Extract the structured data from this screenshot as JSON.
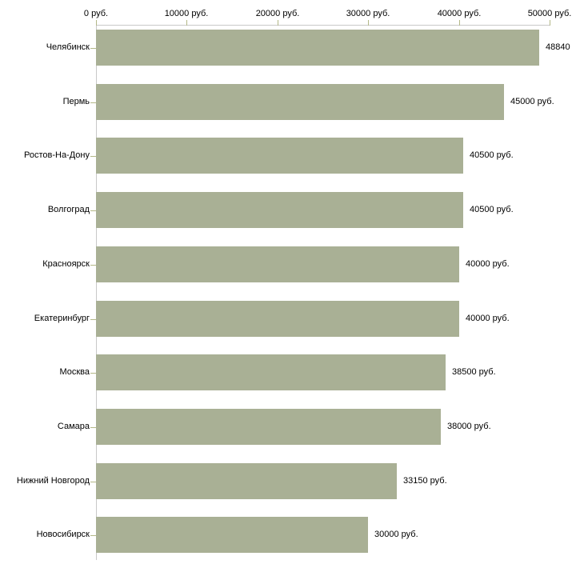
{
  "chart_data": {
    "type": "bar",
    "orientation": "horizontal",
    "title": "",
    "xlabel": "",
    "ylabel": "",
    "categories": [
      "Челябинск",
      "Пермь",
      "Ростов-На-Дону",
      "Волгоград",
      "Красноярск",
      "Екатеринбург",
      "Москва",
      "Самара",
      "Нижний Новгород",
      "Новосибирск"
    ],
    "values": [
      48840,
      45000,
      40500,
      40500,
      40000,
      40000,
      38500,
      38000,
      33150,
      30000
    ],
    "value_labels": [
      "48840",
      "45000 руб.",
      "40500 руб.",
      "40500 руб.",
      "40000 руб.",
      "40000 руб.",
      "38500 руб.",
      "38000 руб.",
      "33150 руб.",
      "30000 руб."
    ],
    "xlim": [
      0,
      50000
    ],
    "x_ticks": [
      0,
      10000,
      20000,
      30000,
      40000,
      50000
    ],
    "x_tick_labels": [
      "0 руб.",
      "10000 руб.",
      "20000 руб.",
      "30000 руб.",
      "40000 руб.",
      "50000 руб."
    ],
    "grid": false,
    "legend": "none",
    "bar_color": "#a9b095",
    "axis_line_color": "#c9c9c9",
    "tick_color": "#b3b887",
    "text_color": "#000000",
    "background": "#ffffff"
  }
}
